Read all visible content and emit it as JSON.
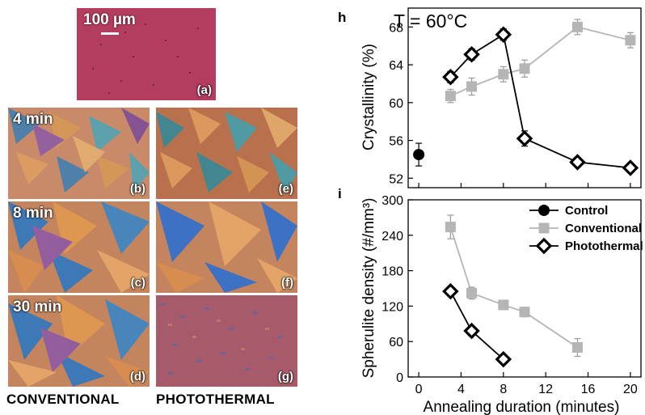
{
  "micrographs": {
    "a": {
      "label": "(a)",
      "scale_bar": "100 µm"
    },
    "b": {
      "label": "(b)",
      "time": "4 min"
    },
    "c": {
      "label": "(c)",
      "time": "8 min"
    },
    "d": {
      "label": "(d)",
      "time": "30 min"
    },
    "e": {
      "label": "(e)"
    },
    "f": {
      "label": "(f)"
    },
    "g": {
      "label": "(g)"
    },
    "column_conventional": "CONVENTIONAL",
    "column_photothermal": "PHOTOTHERMAL"
  },
  "chart_data": [
    {
      "type": "scatter",
      "panel": "h",
      "annotation": "T = 60°C",
      "ylabel": "Crystallinity (%)",
      "xlabel": "",
      "xlim": [
        -1,
        21
      ],
      "ylim": [
        51,
        70
      ],
      "yticks": [
        52,
        56,
        60,
        64,
        68
      ],
      "series": [
        {
          "name": "Control",
          "color": "#000000",
          "marker": "circle",
          "x": [
            0
          ],
          "y": [
            54.5
          ],
          "err": [
            1.2
          ]
        },
        {
          "name": "Conventional",
          "color": "#b5b5b5",
          "marker": "square",
          "x": [
            3,
            5,
            8,
            10,
            15,
            20
          ],
          "y": [
            60.7,
            61.7,
            63.0,
            63.6,
            68.0,
            66.6
          ],
          "err": [
            0.7,
            0.9,
            0.8,
            0.9,
            0.8,
            0.8
          ]
        },
        {
          "name": "Photothermal",
          "color": "#000000",
          "marker": "diamond",
          "x": [
            3,
            5,
            8,
            10,
            15,
            20
          ],
          "y": [
            62.7,
            65.1,
            67.2,
            56.2,
            53.7,
            53.1
          ],
          "err": [
            0.6,
            0.6,
            0.6,
            0.8,
            0.5,
            0.5
          ]
        }
      ]
    },
    {
      "type": "scatter",
      "panel": "i",
      "ylabel": "Spherulite density (#/mm³)",
      "xlabel": "Annealing duration (minutes)",
      "xlim": [
        -1,
        21
      ],
      "ylim": [
        0,
        300
      ],
      "xticks": [
        0,
        4,
        8,
        12,
        16,
        20
      ],
      "yticks": [
        0,
        60,
        120,
        180,
        240,
        300
      ],
      "legend_position": "top-right",
      "series": [
        {
          "name": "Control",
          "color": "#000000",
          "marker": "circle",
          "x": [],
          "y": [],
          "err": []
        },
        {
          "name": "Conventional",
          "color": "#b5b5b5",
          "marker": "square",
          "x": [
            3,
            5,
            8,
            10,
            15
          ],
          "y": [
            254,
            142,
            122,
            110,
            50
          ],
          "err": [
            20,
            10,
            7,
            8,
            15
          ]
        },
        {
          "name": "Photothermal",
          "color": "#000000",
          "marker": "diamond",
          "x": [
            3,
            5,
            8
          ],
          "y": [
            145,
            78,
            30
          ],
          "err": [
            6,
            6,
            5
          ]
        }
      ]
    }
  ]
}
